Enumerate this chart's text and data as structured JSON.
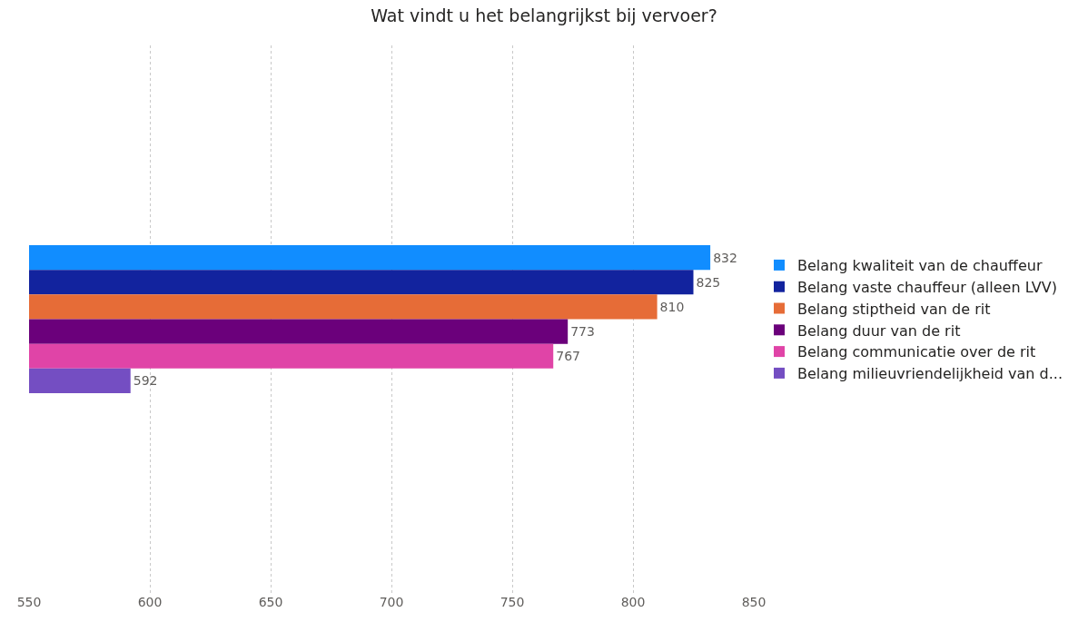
{
  "chart_data": {
    "type": "bar",
    "title": "Wat vindt u het belangrijkst bij vervoer?",
    "orientation": "horizontal",
    "categories": [
      null
    ],
    "series": [
      {
        "name": "Belang kwaliteit van de chauffeur",
        "color": "#118dff",
        "values": [
          832
        ]
      },
      {
        "name": "Belang vaste chauffeur (alleen LVV)",
        "color": "#12239e",
        "values": [
          825
        ]
      },
      {
        "name": "Belang stiptheid van de rit",
        "color": "#e66c37",
        "values": [
          810
        ]
      },
      {
        "name": "Belang duur van de rit",
        "color": "#6b007b",
        "values": [
          773
        ]
      },
      {
        "name": "Belang communicatie over de rit",
        "color": "#e044a7",
        "values": [
          767
        ]
      },
      {
        "name": "Belang milieuvriendelijkheid van d...",
        "color": "#744ec2",
        "values": [
          592
        ]
      }
    ],
    "xlim": [
      550,
      850
    ],
    "xticks": [
      550,
      600,
      650,
      700,
      750,
      800,
      850
    ],
    "grid": "x",
    "legend": "right",
    "data_labels": true
  }
}
